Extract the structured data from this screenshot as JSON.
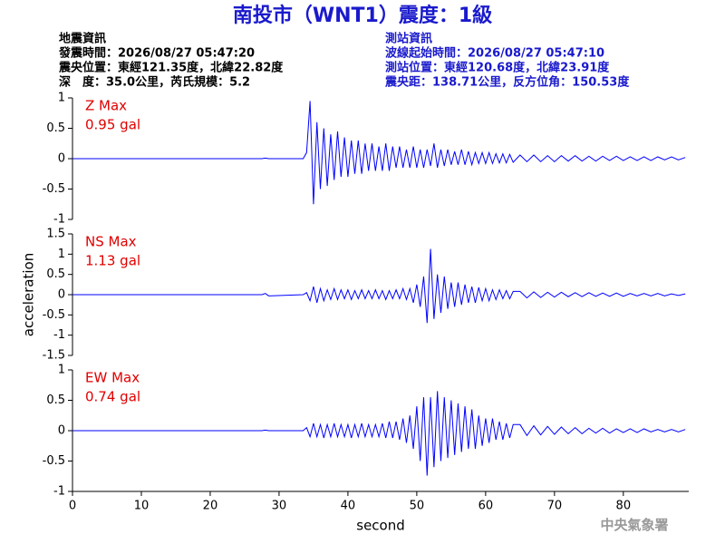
{
  "header": {
    "title": "南投市（WNT1）震度：1級",
    "left": [
      "地震資訊",
      "發震時間：2026/08/27 05:47:20",
      "震央位置：東經121.35度，北緯22.82度",
      "深　度：35.0公里，芮氏規模：5.2"
    ],
    "right": [
      "測站資訊",
      "波線起始時間：2026/08/27 05:47:10",
      "測站位置：東經120.68度，北緯23.91度",
      "震央距：138.71公里，反方位角：150.53度"
    ],
    "footer": "中央氣象署"
  },
  "chart_data": [
    {
      "type": "line",
      "title": "Z Max",
      "annotation": "0.95 gal",
      "xlim": [
        0,
        89.5
      ],
      "ylim": [
        -1,
        1
      ],
      "yticks": [
        -1,
        -0.5,
        0,
        0.5,
        1
      ],
      "x": [
        0,
        27.5,
        28,
        28.5,
        33.5,
        34,
        34.5,
        35,
        35.5,
        36,
        36.5,
        37,
        37.5,
        38,
        38.5,
        39,
        39.5,
        40,
        40.5,
        41,
        41.5,
        42,
        42.5,
        43,
        43.5,
        44,
        44.5,
        45,
        45.5,
        46,
        46.5,
        47,
        47.5,
        48,
        48.5,
        49,
        49.5,
        50,
        50.5,
        51,
        51.5,
        52,
        52.5,
        53,
        53.5,
        54,
        54.5,
        55,
        55.5,
        56,
        56.5,
        57,
        57.5,
        58,
        58.5,
        59,
        59.5,
        60,
        60.5,
        61,
        61.5,
        62,
        62.5,
        63,
        63.5,
        64,
        65,
        66,
        67,
        68,
        69,
        70,
        71,
        72,
        73,
        74,
        75,
        76,
        77,
        78,
        79,
        80,
        81,
        82,
        83,
        84,
        85,
        86,
        87,
        88,
        89
      ],
      "series": [
        {
          "color": "#0000ff",
          "values": [
            0,
            0,
            0.01,
            0,
            0,
            0.1,
            0.95,
            -0.75,
            0.6,
            -0.5,
            0.5,
            -0.45,
            0.4,
            -0.35,
            0.45,
            -0.3,
            0.35,
            -0.3,
            0.3,
            -0.25,
            0.3,
            -0.25,
            0.25,
            -0.2,
            0.25,
            -0.2,
            0.2,
            -0.2,
            0.25,
            -0.2,
            0.2,
            -0.15,
            0.2,
            -0.15,
            0.15,
            -0.15,
            0.2,
            -0.15,
            0.15,
            -0.15,
            0.15,
            -0.12,
            0.25,
            -0.15,
            0.15,
            -0.12,
            0.15,
            -0.1,
            0.12,
            -0.1,
            0.15,
            -0.1,
            0.12,
            -0.1,
            0.1,
            -0.08,
            0.1,
            -0.08,
            0.1,
            -0.08,
            0.08,
            -0.07,
            0.08,
            -0.07,
            0.07,
            -0.06,
            0.06,
            -0.05,
            0.06,
            -0.05,
            0.05,
            -0.05,
            0.05,
            -0.04,
            0.05,
            -0.04,
            0.04,
            -0.04,
            0.04,
            -0.03,
            0.04,
            -0.03,
            0.03,
            -0.03,
            0.03,
            -0.03,
            0.03,
            -0.02,
            0.03,
            -0.02,
            0.02
          ]
        }
      ]
    },
    {
      "type": "line",
      "title": "NS Max",
      "annotation": "1.13 gal",
      "ylabel": "acceleration",
      "xlim": [
        0,
        89.5
      ],
      "ylim": [
        -1.5,
        1.5
      ],
      "yticks": [
        -1.5,
        -1,
        -0.5,
        0,
        0.5,
        1,
        1.5
      ],
      "x": [
        0,
        27.5,
        28,
        28.5,
        33.5,
        34,
        34.5,
        35,
        35.5,
        36,
        36.5,
        37,
        37.5,
        38,
        38.5,
        39,
        39.5,
        40,
        40.5,
        41,
        41.5,
        42,
        42.5,
        43,
        43.5,
        44,
        44.5,
        45,
        45.5,
        46,
        46.5,
        47,
        47.5,
        48,
        48.5,
        49,
        49.5,
        50,
        50.5,
        51,
        51.5,
        52,
        52.5,
        53,
        53.5,
        54,
        54.5,
        55,
        55.5,
        56,
        56.5,
        57,
        57.5,
        58,
        58.5,
        59,
        59.5,
        60,
        60.5,
        61,
        61.5,
        62,
        62.5,
        63,
        63.5,
        64,
        65,
        66,
        67,
        68,
        69,
        70,
        71,
        72,
        73,
        74,
        75,
        76,
        77,
        78,
        79,
        80,
        81,
        82,
        83,
        84,
        85,
        86,
        87,
        88,
        89
      ],
      "series": [
        {
          "color": "#0000ff",
          "values": [
            0,
            0,
            0.03,
            -0.03,
            0,
            0.05,
            -0.15,
            0.2,
            -0.2,
            0.15,
            -0.15,
            0.12,
            -0.12,
            0.15,
            -0.12,
            0.12,
            -0.1,
            0.12,
            -0.12,
            0.1,
            -0.1,
            0.12,
            -0.1,
            0.1,
            -0.1,
            0.12,
            -0.1,
            0.1,
            -0.12,
            0.1,
            -0.1,
            0.12,
            -0.1,
            0.15,
            -0.12,
            0.15,
            -0.2,
            0.25,
            -0.3,
            0.45,
            -0.7,
            1.13,
            -0.6,
            0.5,
            -0.45,
            0.45,
            -0.35,
            0.3,
            -0.3,
            0.3,
            -0.25,
            0.25,
            -0.2,
            0.2,
            -0.2,
            0.18,
            -0.15,
            0.15,
            -0.15,
            0.12,
            -0.12,
            0.12,
            -0.1,
            0.1,
            -0.1,
            0.08,
            0.08,
            -0.08,
            0.07,
            -0.07,
            0.06,
            -0.06,
            0.06,
            -0.05,
            0.05,
            -0.05,
            0.05,
            -0.04,
            0.04,
            -0.04,
            0.04,
            -0.04,
            0.03,
            -0.03,
            0.03,
            -0.03,
            0.03,
            -0.03,
            0.02,
            -0.02,
            0.02
          ]
        }
      ]
    },
    {
      "type": "line",
      "title": "EW Max",
      "annotation": "0.74 gal",
      "xlabel": "second",
      "xlim": [
        0,
        89.5
      ],
      "ylim": [
        -1,
        1
      ],
      "yticks": [
        -1,
        -0.5,
        0,
        0.5,
        1
      ],
      "xticks": [
        0,
        10,
        20,
        30,
        40,
        50,
        60,
        70,
        80
      ],
      "x": [
        0,
        27.5,
        28,
        28.5,
        33.5,
        34,
        34.5,
        35,
        35.5,
        36,
        36.5,
        37,
        37.5,
        38,
        38.5,
        39,
        39.5,
        40,
        40.5,
        41,
        41.5,
        42,
        42.5,
        43,
        43.5,
        44,
        44.5,
        45,
        45.5,
        46,
        46.5,
        47,
        47.5,
        48,
        48.5,
        49,
        49.5,
        50,
        50.5,
        51,
        51.5,
        52,
        52.5,
        53,
        53.5,
        54,
        54.5,
        55,
        55.5,
        56,
        56.5,
        57,
        57.5,
        58,
        58.5,
        59,
        59.5,
        60,
        60.5,
        61,
        61.5,
        62,
        62.5,
        63,
        63.5,
        64,
        65,
        66,
        67,
        68,
        69,
        70,
        71,
        72,
        73,
        74,
        75,
        76,
        77,
        78,
        79,
        80,
        81,
        82,
        83,
        84,
        85,
        86,
        87,
        88,
        89
      ],
      "series": [
        {
          "color": "#0000ff",
          "values": [
            0,
            0,
            0.01,
            0,
            0,
            0.05,
            -0.1,
            0.12,
            -0.1,
            0.1,
            -0.12,
            0.1,
            -0.1,
            0.12,
            -0.1,
            0.1,
            -0.1,
            0.1,
            -0.12,
            0.1,
            -0.1,
            0.12,
            -0.1,
            0.1,
            -0.1,
            0.1,
            -0.1,
            0.12,
            -0.12,
            0.15,
            -0.12,
            0.15,
            -0.15,
            0.2,
            -0.2,
            0.25,
            -0.3,
            0.4,
            -0.5,
            0.55,
            -0.74,
            0.55,
            -0.6,
            0.65,
            -0.5,
            0.55,
            -0.45,
            0.5,
            -0.4,
            0.45,
            -0.35,
            0.4,
            -0.3,
            0.35,
            -0.3,
            0.25,
            -0.25,
            0.2,
            -0.2,
            0.2,
            -0.15,
            0.15,
            -0.15,
            0.12,
            -0.12,
            0.1,
            0.1,
            -0.08,
            0.08,
            -0.07,
            0.07,
            -0.06,
            0.06,
            -0.05,
            0.05,
            -0.05,
            0.04,
            -0.04,
            0.04,
            -0.04,
            0.03,
            -0.03,
            0.03,
            -0.03,
            0.03,
            -0.02,
            0.02,
            -0.02,
            0.02,
            -0.02,
            0.02
          ]
        }
      ]
    }
  ]
}
